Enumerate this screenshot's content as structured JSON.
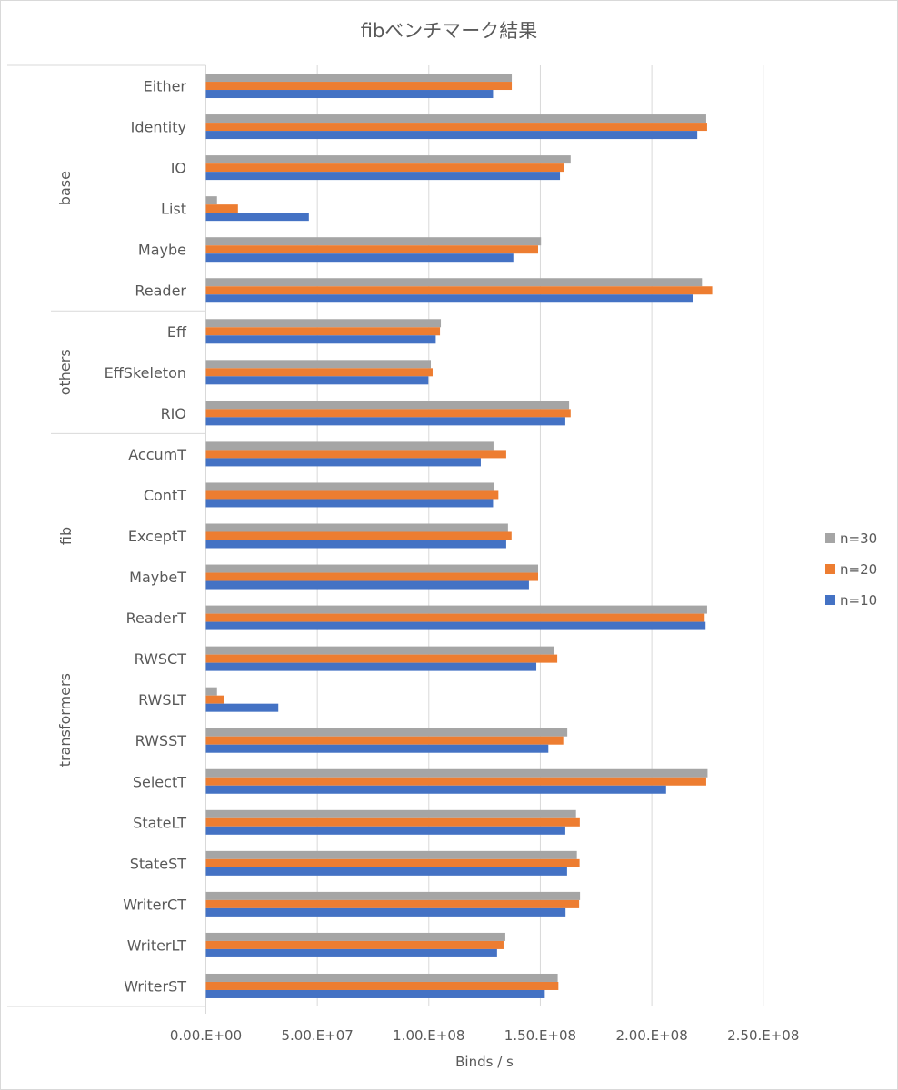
{
  "chart_data": {
    "type": "bar",
    "orientation": "horizontal",
    "title": "fibベンチマーク結果",
    "xlabel": "Binds / s",
    "ylabel": "fib",
    "xlim": [
      0,
      250000000
    ],
    "x_ticks": [
      0,
      50000000,
      100000000,
      150000000,
      200000000,
      250000000
    ],
    "x_tick_labels": [
      "0.00.E+00",
      "5.00.E+07",
      "1.00.E+08",
      "1.50.E+08",
      "2.00.E+08",
      "2.50.E+08"
    ],
    "grid": "vertical",
    "legend_position": "right",
    "groups": [
      {
        "name": "base",
        "categories": [
          "Either",
          "Identity",
          "IO",
          "List",
          "Maybe",
          "Reader"
        ]
      },
      {
        "name": "others",
        "categories": [
          "Eff",
          "EffSkeleton",
          "RIO"
        ]
      },
      {
        "name": "transformers",
        "categories": [
          "AccumT",
          "ContT",
          "ExceptT",
          "MaybeT",
          "ReaderT",
          "RWSCT",
          "RWSLT",
          "RWSST",
          "SelectT",
          "StateLT",
          "StateST",
          "WriterCT",
          "WriterLT",
          "WriterST"
        ]
      }
    ],
    "categories": [
      "Either",
      "Identity",
      "IO",
      "List",
      "Maybe",
      "Reader",
      "Eff",
      "EffSkeleton",
      "RIO",
      "AccumT",
      "ContT",
      "ExceptT",
      "MaybeT",
      "ReaderT",
      "RWSCT",
      "RWSLT",
      "RWSST",
      "SelectT",
      "StateLT",
      "StateST",
      "WriterCT",
      "WriterLT",
      "WriterST"
    ],
    "series": [
      {
        "name": "n=30",
        "color": "#a5a5a5",
        "values": [
          137200000,
          224400000,
          163600000,
          5000000,
          150300000,
          222500000,
          105400000,
          100900000,
          162900000,
          129000000,
          129300000,
          135500000,
          149000000,
          224800000,
          156200000,
          5000000,
          162100000,
          225000000,
          166000000,
          166400000,
          167800000,
          134300000,
          157800000
        ]
      },
      {
        "name": "n=20",
        "color": "#ed7d31",
        "values": [
          137200000,
          224800000,
          160600000,
          14400000,
          149000000,
          227100000,
          105000000,
          101700000,
          163600000,
          134700000,
          131200000,
          137100000,
          149000000,
          223700000,
          157600000,
          8300000,
          160300000,
          224400000,
          167700000,
          167600000,
          167400000,
          133500000,
          158100000
        ]
      },
      {
        "name": "n=10",
        "color": "#4472c4",
        "values": [
          128800000,
          220400000,
          158800000,
          46200000,
          137900000,
          218400000,
          103100000,
          99800000,
          161200000,
          123300000,
          128800000,
          134700000,
          144900000,
          224100000,
          148200000,
          32500000,
          153600000,
          206400000,
          161200000,
          162000000,
          161300000,
          130600000,
          152000000
        ]
      }
    ],
    "legend_order": [
      "n=30",
      "n=20",
      "n=10"
    ]
  }
}
